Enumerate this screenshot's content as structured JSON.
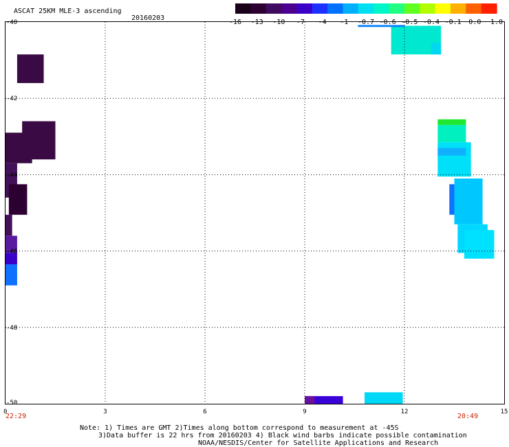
{
  "header": {
    "title": "ASCAT 25KM MLE-3 ascending",
    "date": "20160203"
  },
  "colorbar": {
    "colors": [
      "#1a0018",
      "#2c0030",
      "#3f0a60",
      "#4b0090",
      "#3a00c8",
      "#1c30ff",
      "#0070ff",
      "#00b0ff",
      "#00e0f0",
      "#00f5c8",
      "#20ff80",
      "#60ff20",
      "#b0ff00",
      "#ffff00",
      "#ffb000",
      "#ff6000",
      "#ff2000"
    ],
    "labels": [
      "-16",
      "-13",
      "-10",
      "-7",
      "-4",
      "-1",
      "-0.7",
      "-0.6",
      "-0.5",
      "-0.4",
      "-0.1",
      "0.0",
      "1.0"
    ]
  },
  "axes": {
    "y_ticks": [
      "-40",
      "-42",
      "-44",
      "-46",
      "-48",
      "-50"
    ],
    "x_ticks": [
      "0",
      "3",
      "6",
      "9",
      "12",
      "15"
    ],
    "x_start_time": "22:29",
    "x_end_time": "20:49"
  },
  "swaths": [
    {
      "x0": 0.35,
      "x1": 1.15,
      "y0": -40.85,
      "y1": -41.6,
      "color": "#3a0a44"
    },
    {
      "x0": 0.5,
      "x1": 1.5,
      "y0": -42.6,
      "y1": -43.6,
      "color": "#3a0a44"
    },
    {
      "x0": 0.0,
      "x1": 0.8,
      "y0": -42.9,
      "y1": -43.7,
      "color": "#3a0a44"
    },
    {
      "x0": 0.0,
      "x1": 0.35,
      "y0": -43.7,
      "y1": -44.6,
      "color": "#45105a"
    },
    {
      "x0": 0.1,
      "x1": 0.65,
      "y0": -44.25,
      "y1": -45.05,
      "color": "#2c0030"
    },
    {
      "x0": 0.0,
      "x1": 0.2,
      "y0": -45.05,
      "y1": -45.6,
      "color": "#45105a"
    },
    {
      "x0": 0.0,
      "x1": 0.35,
      "y0": -45.6,
      "y1": -46.05,
      "color": "#5a1aa0"
    },
    {
      "x0": 0.0,
      "x1": 0.35,
      "y0": -46.05,
      "y1": -46.35,
      "color": "#3a00c8"
    },
    {
      "x0": 0.0,
      "x1": 0.35,
      "y0": -46.35,
      "y1": -46.9,
      "color": "#1070ff"
    },
    {
      "x0": 11.6,
      "x1": 13.1,
      "y0": -40.1,
      "y1": -40.85,
      "color": "#00e8d0"
    },
    {
      "x0": 12.8,
      "x1": 13.1,
      "y0": -40.55,
      "y1": -40.85,
      "color": "#00d8f0"
    },
    {
      "x0": 10.6,
      "x1": 12.0,
      "y0": -40.08,
      "y1": -40.13,
      "color": "#0080ff"
    },
    {
      "x0": 13.0,
      "x1": 13.85,
      "y0": -42.55,
      "y1": -42.7,
      "color": "#20e830"
    },
    {
      "x0": 13.0,
      "x1": 13.85,
      "y0": -42.7,
      "y1": -43.15,
      "color": "#00f0c0"
    },
    {
      "x0": 13.0,
      "x1": 14.0,
      "y0": -43.15,
      "y1": -44.05,
      "color": "#00e0f8"
    },
    {
      "x0": 13.0,
      "x1": 13.85,
      "y0": -43.3,
      "y1": -43.5,
      "color": "#10b0ff"
    },
    {
      "x0": 13.35,
      "x1": 13.5,
      "y0": -44.25,
      "y1": -45.05,
      "color": "#1070ff"
    },
    {
      "x0": 13.5,
      "x1": 14.35,
      "y0": -44.1,
      "y1": -45.3,
      "color": "#00c8ff"
    },
    {
      "x0": 13.6,
      "x1": 14.5,
      "y0": -45.3,
      "y1": -46.05,
      "color": "#00d8ff"
    },
    {
      "x0": 13.8,
      "x1": 14.7,
      "y0": -45.45,
      "y1": -46.2,
      "color": "#00e0ff"
    },
    {
      "x0": 9.0,
      "x1": 10.15,
      "y0": -49.8,
      "y1": -50.0,
      "color": "#3a00d8"
    },
    {
      "x0": 9.0,
      "x1": 9.3,
      "y0": -49.8,
      "y1": -50.0,
      "color": "#6a10a0"
    },
    {
      "x0": 10.8,
      "x1": 11.95,
      "y0": -49.7,
      "y1": -50.0,
      "color": "#00d8f8"
    }
  ],
  "notes": {
    "line1": "Note: 1) Times are GMT 2)Times along bottom correspond to measurement at -45S",
    "line2": "3)Data buffer is 22 hrs from 20160203 4) Black wind barbs indicate possible contamination",
    "line3": "NOAA/NESDIS/Center for Satellite Applications and Research"
  }
}
